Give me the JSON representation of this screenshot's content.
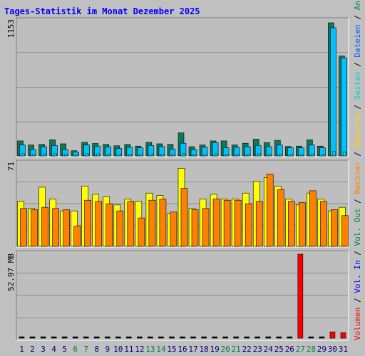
{
  "colors": {
    "page_bg": "#c0c0c0",
    "panel_bg": "#bebebe",
    "grid": "#8c8c8c",
    "title": "#0000ff",
    "weekday_label": "#000080",
    "weekend_label": "#008040",
    "requests": "#0e7a5a",
    "files": "#00c0ff",
    "pages": "#00d0d0",
    "visits": "#ffff00",
    "hosts": "#ff8000",
    "volume": "#ff0000",
    "vol_in": "#0000ff",
    "vol_out": "#008040"
  },
  "chart_data": [
    {
      "type": "bar",
      "title": "Tages-Statistik im Monat Dezember 2025",
      "categories": [
        "1",
        "2",
        "3",
        "4",
        "5",
        "6",
        "7",
        "8",
        "9",
        "10",
        "11",
        "12",
        "13",
        "14",
        "15",
        "16",
        "17",
        "18",
        "19",
        "20",
        "21",
        "22",
        "23",
        "24",
        "25",
        "26",
        "27",
        "28",
        "29",
        "30",
        "31"
      ],
      "weekend_days": [
        "6",
        "7",
        "13",
        "14",
        "20",
        "21",
        "27",
        "28"
      ],
      "y_tick_label": "1153",
      "ylim": [
        0,
        1153
      ],
      "series": [
        {
          "name": "Anfragen",
          "color": "#0e7a5a",
          "values": [
            130,
            95,
            100,
            140,
            105,
            45,
            118,
            108,
            100,
            88,
            100,
            85,
            118,
            105,
            100,
            200,
            80,
            95,
            130,
            130,
            95,
            110,
            145,
            115,
            135,
            82,
            85,
            140,
            85,
            1153,
            865
          ]
        },
        {
          "name": "Dateien",
          "color": "#00c0ff",
          "values": [
            95,
            55,
            80,
            90,
            55,
            35,
            95,
            85,
            80,
            65,
            75,
            70,
            90,
            80,
            60,
            110,
            55,
            75,
            115,
            70,
            75,
            80,
            90,
            80,
            95,
            70,
            70,
            95,
            70,
            1110,
            850
          ]
        },
        {
          "name": "Seiten",
          "color": "#00d0d0",
          "values": [
            20,
            15,
            18,
            22,
            14,
            10,
            20,
            18,
            17,
            15,
            16,
            15,
            18,
            17,
            15,
            22,
            13,
            16,
            20,
            16,
            15,
            17,
            19,
            17,
            18,
            14,
            15,
            18,
            15,
            40,
            35
          ]
        }
      ]
    },
    {
      "type": "bar",
      "y_tick_label": "71",
      "ylim": [
        0,
        71
      ],
      "series": [
        {
          "name": "Besuche",
          "color": "#ffff00",
          "values": [
            38,
            32,
            50,
            40,
            30,
            30,
            51,
            44,
            42,
            35,
            40,
            38,
            45,
            43,
            28,
            66,
            32,
            40,
            44,
            40,
            40,
            45,
            55,
            58,
            51,
            40,
            35,
            45,
            40,
            30,
            33
          ]
        },
        {
          "name": "Rechner",
          "color": "#ff8000",
          "values": [
            32,
            31,
            33,
            32,
            31,
            17,
            39,
            38,
            36,
            30,
            38,
            24,
            39,
            40,
            29,
            49,
            31,
            32,
            40,
            39,
            39,
            36,
            38,
            61,
            48,
            38,
            37,
            47,
            38,
            31,
            26
          ]
        }
      ]
    },
    {
      "type": "bar",
      "y_tick_label": "52.97 MB",
      "ylim": [
        0,
        52.97
      ],
      "series": [
        {
          "name": "Volumen",
          "color": "#ff0000",
          "values": [
            0.1,
            0.1,
            0.1,
            0.1,
            0.1,
            0.1,
            0.1,
            0.1,
            0.1,
            0.1,
            0.1,
            0.1,
            0.1,
            0.1,
            0.1,
            0.1,
            0.1,
            0.1,
            0.1,
            0.1,
            0.1,
            0.1,
            0.1,
            0.1,
            0.1,
            0.1,
            52.97,
            0.1,
            0.1,
            4,
            3.5
          ]
        }
      ]
    }
  ],
  "legend_right": [
    {
      "label": "Volumen",
      "color": "#ff0000"
    },
    {
      "label": " / ",
      "color": "#000000"
    },
    {
      "label": "Vol. In",
      "color": "#0000ff"
    },
    {
      "label": " / ",
      "color": "#000000"
    },
    {
      "label": "Vol. Out",
      "color": "#008040"
    },
    {
      "label": " / ",
      "color": "#000000"
    },
    {
      "label": "Rechner",
      "color": "#ff8000"
    },
    {
      "label": " / ",
      "color": "#000000"
    },
    {
      "label": "Besuche",
      "color": "#ffd000"
    },
    {
      "label": " / ",
      "color": "#000000"
    },
    {
      "label": "Seiten",
      "color": "#00d0d0"
    },
    {
      "label": " / ",
      "color": "#000000"
    },
    {
      "label": "Dateien",
      "color": "#0060ff"
    },
    {
      "label": " / ",
      "color": "#000000"
    },
    {
      "label": "Anfragen",
      "color": "#0e7a5a"
    }
  ]
}
